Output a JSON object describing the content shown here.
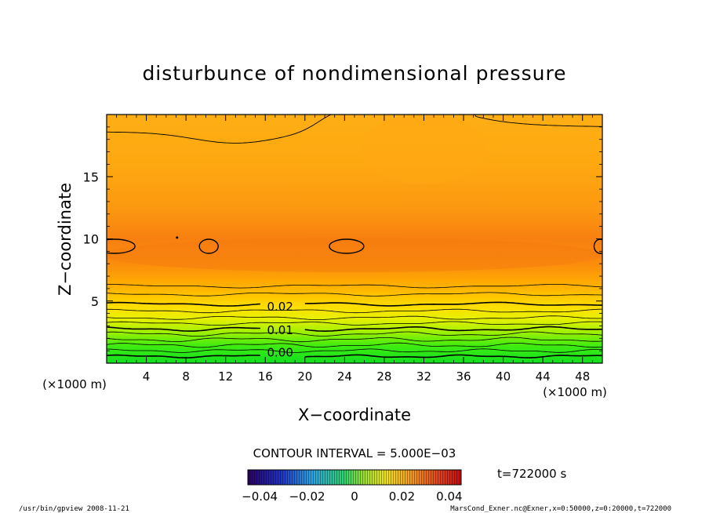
{
  "chart_data": {
    "type": "heatmap",
    "title": "disturbunce of nondimensional pressure",
    "xlabel": "X−coordinate",
    "ylabel": "Z−coordinate",
    "x_units_left": "(×1000 m)",
    "x_units_right": "(×1000 m)",
    "xlim": [
      0,
      50
    ],
    "ylim": [
      0,
      20
    ],
    "x_ticks": [
      "4",
      "8",
      "12",
      "16",
      "20",
      "24",
      "28",
      "32",
      "36",
      "40",
      "44",
      "48"
    ],
    "y_ticks": [
      "5",
      "10",
      "15"
    ],
    "contour_interval_label": "CONTOUR INTERVAL = 5.000E−03",
    "contour_labels": [
      {
        "text": "0.02",
        "x": 17.5,
        "z": 4.6
      },
      {
        "text": "0.01",
        "x": 17.5,
        "z": 2.7
      },
      {
        "text": "0.00",
        "x": 17.5,
        "z": 0.9
      }
    ],
    "closed_contours_near_z10": [
      0.8,
      10.3,
      24.2,
      49.8
    ],
    "colorbar": {
      "range": [
        -0.045,
        0.045
      ],
      "tick_labels": [
        "−0.04",
        "−0.02",
        "0",
        "0.02",
        "0.04"
      ],
      "tick_values": [
        -0.04,
        -0.02,
        0,
        0.02,
        0.04
      ]
    },
    "time_label": "t=722000 s",
    "colors": {
      "low": "#00c800",
      "mid": "#ffd700",
      "high": "#f07010"
    }
  },
  "footer": {
    "left": "/usr/bin/gpview   2008-11-21",
    "right": "MarsCond_Exner.nc@Exner,x=0:50000,z=0:20000,t=722000"
  }
}
